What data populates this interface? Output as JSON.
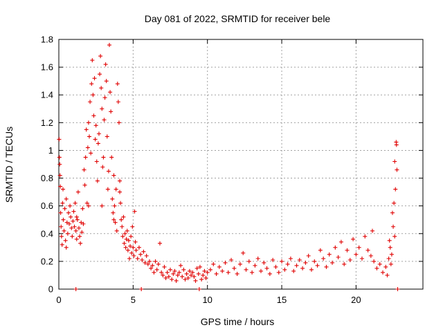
{
  "chart_data": {
    "type": "scatter",
    "title": "Day 081 of 2022, SRMTID for receiver bele",
    "xlabel": "GPS time / hours",
    "ylabel": "SRMTID / TECUs",
    "xlim": [
      0,
      24.5
    ],
    "ylim": [
      0,
      1.8
    ],
    "xticks": [
      0,
      5,
      10,
      15,
      20
    ],
    "yticks": [
      0,
      0.2,
      0.4,
      0.6,
      0.8,
      1,
      1.2,
      1.4,
      1.6,
      1.8
    ],
    "grid": true,
    "marker": "+",
    "color": "#e00000",
    "series": [
      {
        "name": "SRMTID",
        "points": [
          [
            0.02,
            1.08
          ],
          [
            0.04,
            0.95
          ],
          [
            0.06,
            0.9
          ],
          [
            0.08,
            0.82
          ],
          [
            0.1,
            0.74
          ],
          [
            0.12,
            0.55
          ],
          [
            0.15,
            0.45
          ],
          [
            0.18,
            0.38
          ],
          [
            0.22,
            0.32
          ],
          [
            0.25,
            0.62
          ],
          [
            0.28,
            0.72
          ],
          [
            0.3,
            0.5
          ],
          [
            0.35,
            0.42
          ],
          [
            0.4,
            0.58
          ],
          [
            0.45,
            0.35
          ],
          [
            0.5,
            0.65
          ],
          [
            0.55,
            0.48
          ],
          [
            0.6,
            0.4
          ],
          [
            0.65,
            0.55
          ],
          [
            0.7,
            0.47
          ],
          [
            0.75,
            0.6
          ],
          [
            0.8,
            0.52
          ],
          [
            0.85,
            0.44
          ],
          [
            0.9,
            0.38
          ],
          [
            0.95,
            0.49
          ],
          [
            1.0,
            0.56
          ],
          [
            1.05,
            0.45
          ],
          [
            1.1,
            0.62
          ],
          [
            1.15,
            0.42
          ],
          [
            1.2,
            0.36
          ],
          [
            1.25,
            0.5
          ],
          [
            1.3,
            0.7
          ],
          [
            1.35,
            0.44
          ],
          [
            1.4,
            0.38
          ],
          [
            1.45,
            0.33
          ],
          [
            1.5,
            0.48
          ],
          [
            1.55,
            0.41
          ],
          [
            1.6,
            0.58
          ],
          [
            1.65,
            0.47
          ],
          [
            1.7,
            0.86
          ],
          [
            1.75,
            0.75
          ],
          [
            1.8,
            0.95
          ],
          [
            1.85,
            1.15
          ],
          [
            1.9,
            0.62
          ],
          [
            1.95,
            1.02
          ],
          [
            2.0,
            1.2
          ],
          [
            2.05,
            1.1
          ],
          [
            2.1,
            1.35
          ],
          [
            2.15,
            0.98
          ],
          [
            2.2,
            1.48
          ],
          [
            2.25,
            1.65
          ],
          [
            2.3,
            1.4
          ],
          [
            2.35,
            1.25
          ],
          [
            2.4,
            1.52
          ],
          [
            2.45,
            1.08
          ],
          [
            2.5,
            1.18
          ],
          [
            2.55,
            0.92
          ],
          [
            2.6,
            0.78
          ],
          [
            2.65,
            1.05
          ],
          [
            2.7,
            1.12
          ],
          [
            2.75,
            1.55
          ],
          [
            2.8,
            1.68
          ],
          [
            2.85,
            1.45
          ],
          [
            2.9,
            1.3
          ],
          [
            2.95,
            0.88
          ],
          [
            3.0,
            0.95
          ],
          [
            3.05,
            1.22
          ],
          [
            3.1,
            1.38
          ],
          [
            3.15,
            1.62
          ],
          [
            3.2,
            1.5
          ],
          [
            3.25,
            1.1
          ],
          [
            3.3,
            0.72
          ],
          [
            3.35,
            0.85
          ],
          [
            3.4,
            1.76
          ],
          [
            3.45,
            1.42
          ],
          [
            3.5,
            1.28
          ],
          [
            3.55,
            0.95
          ],
          [
            3.6,
            0.65
          ],
          [
            3.65,
            0.55
          ],
          [
            3.7,
            0.82
          ],
          [
            3.75,
            0.6
          ],
          [
            3.8,
            0.48
          ],
          [
            3.85,
            0.72
          ],
          [
            3.9,
            0.42
          ],
          [
            3.95,
            1.48
          ],
          [
            4.0,
            1.35
          ],
          [
            4.05,
            1.2
          ],
          [
            4.1,
            0.78
          ],
          [
            4.15,
            0.62
          ],
          [
            4.2,
            0.5
          ],
          [
            4.25,
            0.45
          ],
          [
            4.3,
            0.38
          ],
          [
            4.35,
            0.52
          ],
          [
            4.4,
            0.33
          ],
          [
            4.45,
            0.4
          ],
          [
            4.5,
            0.3
          ],
          [
            4.55,
            0.36
          ],
          [
            4.6,
            0.42
          ],
          [
            4.65,
            0.28
          ],
          [
            4.7,
            0.35
          ],
          [
            4.75,
            0.22
          ],
          [
            4.8,
            0.31
          ],
          [
            4.85,
            0.38
          ],
          [
            4.9,
            0.26
          ],
          [
            4.95,
            0.45
          ],
          [
            5.0,
            0.3
          ],
          [
            5.05,
            0.24
          ],
          [
            5.1,
            0.56
          ],
          [
            5.15,
            0.34
          ],
          [
            5.2,
            0.28
          ],
          [
            5.3,
            0.22
          ],
          [
            5.4,
            0.3
          ],
          [
            5.5,
            0.25
          ],
          [
            5.6,
            0.21
          ],
          [
            5.7,
            0.27
          ],
          [
            5.8,
            0.19
          ],
          [
            5.9,
            0.24
          ],
          [
            6.0,
            0.18
          ],
          [
            6.1,
            0.2
          ],
          [
            6.2,
            0.15
          ],
          [
            6.3,
            0.17
          ],
          [
            6.4,
            0.12
          ],
          [
            6.5,
            0.2
          ],
          [
            6.6,
            0.14
          ],
          [
            6.7,
            0.18
          ],
          [
            6.8,
            0.33
          ],
          [
            6.9,
            0.12
          ],
          [
            7.0,
            0.1
          ],
          [
            7.1,
            0.16
          ],
          [
            7.2,
            0.08
          ],
          [
            7.3,
            0.12
          ],
          [
            7.4,
            0.09
          ],
          [
            7.5,
            0.14
          ],
          [
            7.6,
            0.07
          ],
          [
            7.7,
            0.11
          ],
          [
            7.8,
            0.13
          ],
          [
            7.9,
            0.06
          ],
          [
            8.0,
            0.1
          ],
          [
            8.1,
            0.12
          ],
          [
            8.2,
            0.17
          ],
          [
            8.3,
            0.09
          ],
          [
            8.4,
            0.14
          ],
          [
            8.5,
            0.07
          ],
          [
            8.6,
            0.11
          ],
          [
            8.7,
            0.08
          ],
          [
            8.8,
            0.13
          ],
          [
            8.9,
            0.1
          ],
          [
            9.0,
            0.12
          ],
          [
            9.1,
            0.09
          ],
          [
            9.2,
            0.06
          ],
          [
            9.3,
            0.15
          ],
          [
            9.4,
            0.11
          ],
          [
            9.5,
            0.16
          ],
          [
            9.6,
            0.07
          ],
          [
            9.7,
            0.1
          ],
          [
            9.8,
            0.13
          ],
          [
            9.9,
            0.08
          ],
          [
            10.0,
            0.12
          ],
          [
            10.2,
            0.14
          ],
          [
            10.4,
            0.18
          ],
          [
            10.6,
            0.11
          ],
          [
            10.8,
            0.16
          ],
          [
            11.0,
            0.13
          ],
          [
            11.2,
            0.19
          ],
          [
            11.4,
            0.12
          ],
          [
            11.6,
            0.21
          ],
          [
            11.8,
            0.15
          ],
          [
            12.0,
            0.11
          ],
          [
            12.2,
            0.18
          ],
          [
            12.4,
            0.26
          ],
          [
            12.6,
            0.14
          ],
          [
            12.8,
            0.2
          ],
          [
            13.0,
            0.12
          ],
          [
            13.2,
            0.17
          ],
          [
            13.4,
            0.22
          ],
          [
            13.6,
            0.13
          ],
          [
            13.8,
            0.19
          ],
          [
            14.0,
            0.15
          ],
          [
            14.2,
            0.11
          ],
          [
            14.4,
            0.21
          ],
          [
            14.6,
            0.16
          ],
          [
            14.8,
            0.12
          ],
          [
            15.0,
            0.2
          ],
          [
            15.2,
            0.14
          ],
          [
            15.4,
            0.18
          ],
          [
            15.6,
            0.22
          ],
          [
            15.8,
            0.13
          ],
          [
            16.0,
            0.17
          ],
          [
            16.2,
            0.21
          ],
          [
            16.4,
            0.15
          ],
          [
            16.6,
            0.19
          ],
          [
            16.8,
            0.24
          ],
          [
            17.0,
            0.14
          ],
          [
            17.2,
            0.2
          ],
          [
            17.4,
            0.17
          ],
          [
            17.6,
            0.28
          ],
          [
            17.8,
            0.22
          ],
          [
            18.0,
            0.16
          ],
          [
            18.2,
            0.25
          ],
          [
            18.4,
            0.19
          ],
          [
            18.6,
            0.3
          ],
          [
            18.8,
            0.23
          ],
          [
            19.0,
            0.34
          ],
          [
            19.2,
            0.18
          ],
          [
            19.4,
            0.28
          ],
          [
            19.6,
            0.21
          ],
          [
            19.8,
            0.36
          ],
          [
            20.0,
            0.25
          ],
          [
            20.2,
            0.3
          ],
          [
            20.4,
            0.22
          ],
          [
            20.6,
            0.38
          ],
          [
            20.8,
            0.28
          ],
          [
            21.0,
            0.24
          ],
          [
            21.1,
            0.42
          ],
          [
            21.2,
            0.2
          ],
          [
            21.4,
            0.15
          ],
          [
            21.6,
            0.18
          ],
          [
            21.8,
            0.12
          ],
          [
            22.0,
            0.16
          ],
          [
            22.1,
            0.1
          ],
          [
            22.2,
            0.22
          ],
          [
            22.25,
            0.35
          ],
          [
            22.3,
            0.3
          ],
          [
            22.35,
            0.18
          ],
          [
            22.4,
            0.25
          ],
          [
            22.45,
            0.55
          ],
          [
            22.5,
            0.45
          ],
          [
            22.55,
            0.62
          ],
          [
            22.6,
            0.38
          ],
          [
            22.65,
            0.72
          ],
          [
            22.7,
            1.06
          ],
          [
            22.72,
            1.04
          ],
          [
            22.75,
            0.86
          ],
          [
            22.6,
            0.92
          ],
          [
            2.0,
            0.6
          ],
          [
            1.2,
            0.52
          ],
          [
            3.7,
            0.5
          ],
          [
            2.9,
            0.6
          ],
          [
            4.1,
            0.7
          ],
          [
            0.5,
            0.3
          ]
        ]
      }
    ],
    "zero_points": [
      1.15,
      5.55,
      9.45,
      22.8
    ]
  }
}
